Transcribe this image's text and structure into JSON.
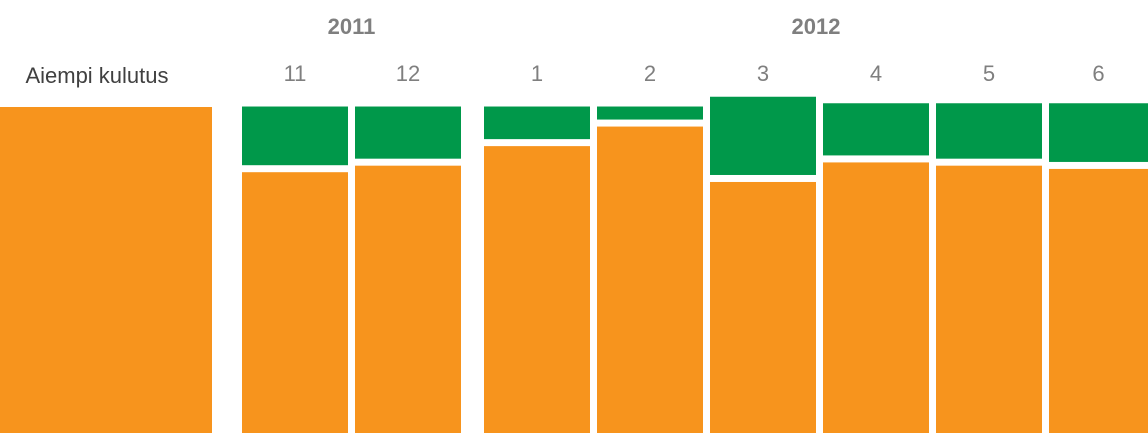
{
  "chart_data": {
    "type": "bar",
    "stacked": true,
    "x_label": "",
    "y_label": "",
    "y_range": [
      0,
      100
    ],
    "grid": false,
    "legend": "none",
    "colors": {
      "base": "#F7941D",
      "extra": "#00984A"
    },
    "baseline": {
      "label": "Aiempi kulutus",
      "value": 100
    },
    "year_labels": [
      {
        "label": "2011",
        "months": [
          "11",
          "12"
        ]
      },
      {
        "label": "2012",
        "months": [
          "1",
          "2",
          "3",
          "4",
          "5",
          "6"
        ]
      }
    ],
    "categories": [
      "11",
      "12",
      "1",
      "2",
      "3",
      "4",
      "5",
      "6"
    ],
    "series": [
      {
        "values": [
          80,
          82,
          88,
          94,
          77,
          83,
          82,
          81
        ]
      },
      {
        "values": [
          18,
          16,
          10,
          4,
          24,
          16,
          17,
          18
        ]
      }
    ]
  }
}
